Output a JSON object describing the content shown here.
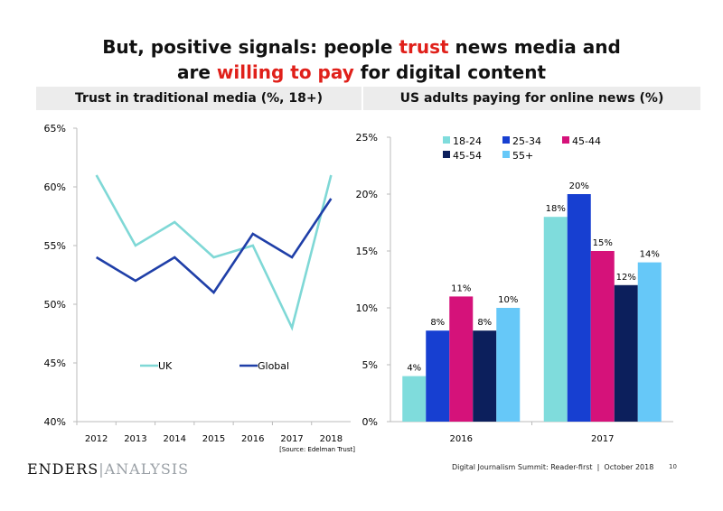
{
  "title": {
    "line1_pre": "But, positive signals: people ",
    "line1_red": "trust",
    "line1_post": " news media and",
    "line2_pre": "are ",
    "line2_red": "willing to pay",
    "line2_post": " for digital content"
  },
  "colors": {
    "accent_red": "#e0201a"
  },
  "chart_data": [
    {
      "type": "line",
      "title": "Trust in traditional media (%, 18+)",
      "x": [
        "2012",
        "2013",
        "2014",
        "2015",
        "2016",
        "2017",
        "2018"
      ],
      "yticks": [
        "40%",
        "45%",
        "50%",
        "55%",
        "60%",
        "65%"
      ],
      "ylim": [
        40,
        65
      ],
      "grid": false,
      "legend": "bottom-center",
      "source": "[Source: Edelman Trust]",
      "series": [
        {
          "name": "UK",
          "color": "#7fd8d6",
          "values": [
            61,
            55,
            57,
            54,
            55,
            48,
            61
          ]
        },
        {
          "name": "Global",
          "color": "#1f3fa8",
          "values": [
            54,
            52,
            54,
            51,
            56,
            54,
            59
          ]
        }
      ]
    },
    {
      "type": "bar",
      "title": "US adults paying for online news (%)",
      "categories": [
        "2016",
        "2017"
      ],
      "yticks": [
        "0%",
        "5%",
        "10%",
        "15%",
        "20%",
        "25%"
      ],
      "ylim": [
        0,
        25
      ],
      "grid": false,
      "legend": "top",
      "series": [
        {
          "name": "18-24",
          "color": "#7fdcdc",
          "values": [
            4,
            18
          ],
          "labels": [
            "4%",
            "18%"
          ]
        },
        {
          "name": "25-34",
          "color": "#173fd1",
          "values": [
            8,
            20
          ],
          "labels": [
            "8%",
            "20%"
          ]
        },
        {
          "name": "45-44",
          "color": "#d5127a",
          "values": [
            11,
            15
          ],
          "labels": [
            "11%",
            "15%"
          ]
        },
        {
          "name": "45-54",
          "color": "#0c1f5c",
          "values": [
            8,
            12
          ],
          "labels": [
            "8%",
            "12%"
          ]
        },
        {
          "name": "55+",
          "color": "#66c8f8",
          "values": [
            10,
            14
          ],
          "labels": [
            "10%",
            "14%"
          ]
        }
      ]
    }
  ],
  "footer": {
    "logo_left": "ENDERS",
    "logo_right": "ANALYSIS",
    "text": "Digital Journalism Summit: Reader-first  |  October 2018",
    "page": "10"
  }
}
